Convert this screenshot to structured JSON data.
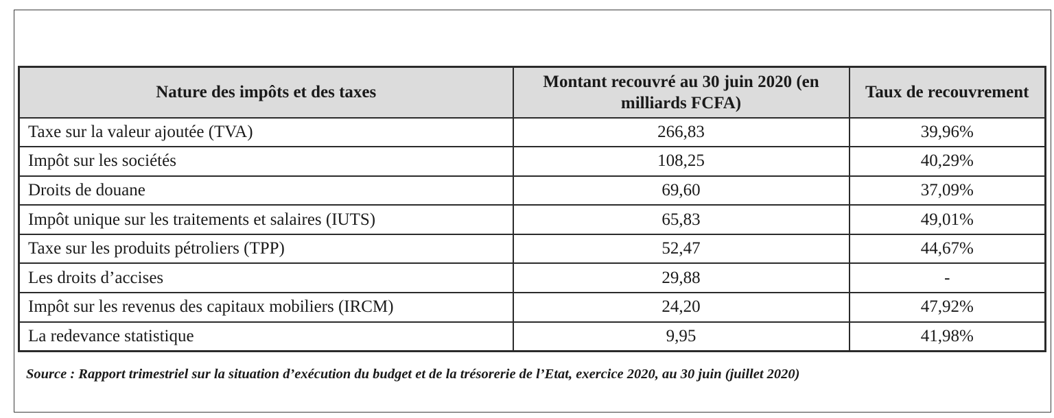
{
  "table": {
    "headers": {
      "nature": "Nature des impôts et des taxes",
      "montant": "Montant recouvré au 30 juin 2020 (en milliards FCFA)",
      "taux": "Taux de recouvrement"
    },
    "rows": [
      {
        "nature": "Taxe sur la valeur ajoutée (TVA)",
        "montant": "266,83",
        "taux": "39,96%"
      },
      {
        "nature": "Impôt sur les sociétés",
        "montant": "108,25",
        "taux": "40,29%"
      },
      {
        "nature": "Droits de douane",
        "montant": "69,60",
        "taux": "37,09%"
      },
      {
        "nature": "Impôt unique sur les traitements et salaires (IUTS)",
        "montant": "65,83",
        "taux": "49,01%"
      },
      {
        "nature": "Taxe sur les produits pétroliers (TPP)",
        "montant": "52,47",
        "taux": "44,67%"
      },
      {
        "nature": "Les droits d’accises",
        "montant": "29,88",
        "taux": "-"
      },
      {
        "nature": "Impôt sur les revenus des capitaux mobiliers (IRCM)",
        "montant": "24,20",
        "taux": "47,92%"
      },
      {
        "nature": "La redevance statistique",
        "montant": "9,95",
        "taux": "41,98%"
      }
    ]
  },
  "source": "Source : Rapport trimestriel sur la situation d’exécution du budget et de la trésorerie de l’Etat, exercice 2020, au 30 juin (juillet 2020)"
}
